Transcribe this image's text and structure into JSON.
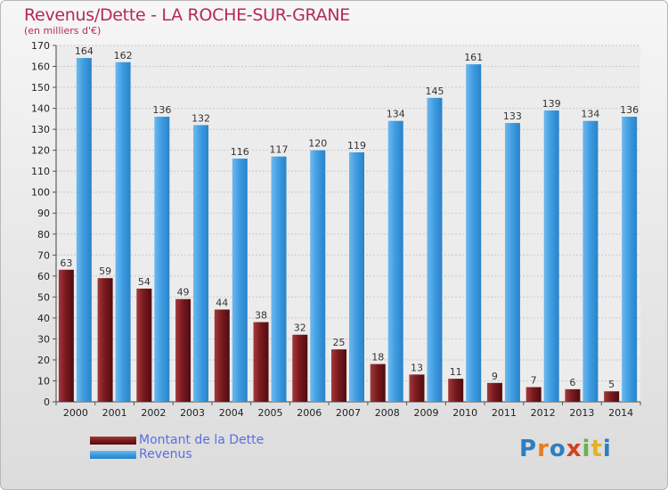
{
  "chart_data": {
    "type": "bar",
    "title": "Revenus/Dette - LA ROCHE-SUR-GRANE",
    "subtitle": "(en milliers d'€)",
    "categories": [
      "2000",
      "2001",
      "2002",
      "2003",
      "2004",
      "2005",
      "2006",
      "2007",
      "2008",
      "2009",
      "2010",
      "2011",
      "2012",
      "2013",
      "2014"
    ],
    "series": [
      {
        "name": "Montant de la Dette",
        "color": "#7b1a1e",
        "values": [
          63,
          59,
          54,
          49,
          44,
          38,
          32,
          25,
          18,
          13,
          11,
          9,
          7,
          6,
          5
        ]
      },
      {
        "name": "Revenus",
        "color": "#3d9be0",
        "values": [
          164,
          162,
          136,
          132,
          116,
          117,
          120,
          119,
          134,
          145,
          161,
          133,
          139,
          134,
          136
        ]
      }
    ],
    "ylim": [
      0,
      170
    ],
    "ytick_step": 10,
    "grid": true,
    "legend": "bottom-left"
  },
  "logo": {
    "text": "Proxiti",
    "colors": [
      "#2c7fc1",
      "#e87d1e",
      "#2c7fc1",
      "#d4411f",
      "#6ab04c",
      "#e3b21e",
      "#2c7fc1"
    ]
  }
}
